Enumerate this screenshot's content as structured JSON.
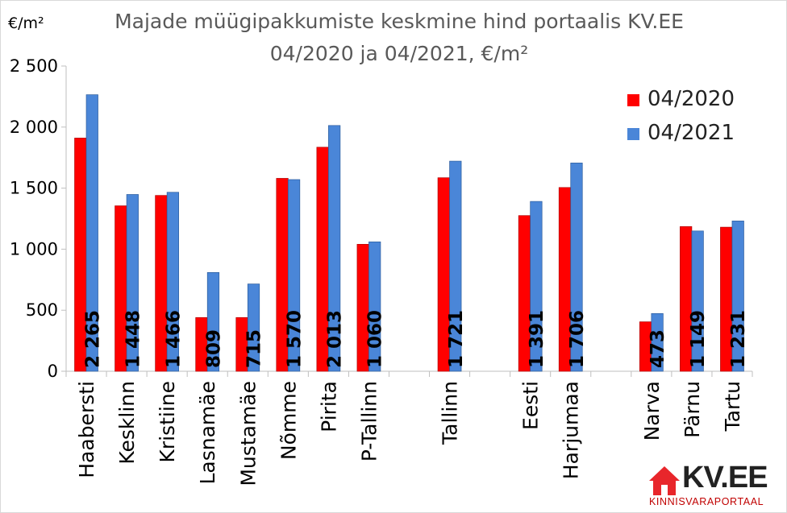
{
  "chart_data": {
    "type": "bar",
    "title": "Majade müügipakkumiste keskmine hind portaalis KV.EE",
    "subtitle": "04/2020 ja 04/2021, €/m²",
    "ylabel": "€/m²",
    "ylim": [
      0,
      2500
    ],
    "yticks": [
      "0",
      "500",
      "1 000",
      "1 500",
      "2 000",
      "2 500"
    ],
    "grid": false,
    "legend_position": "top-right",
    "categories": [
      "Haabersti",
      "Kesklinn",
      "Kristiine",
      "Lasnamäe",
      "Mustamäe",
      "Nõmme",
      "Pirita",
      "P-Tallinn",
      "",
      "Tallinn",
      "",
      "Eesti",
      "Harjumaa",
      "",
      "Narva",
      "Pärnu",
      "Tartu"
    ],
    "series": [
      {
        "name": "04/2020",
        "color": "#ff0000",
        "values": [
          1910,
          1355,
          1440,
          440,
          440,
          1580,
          1835,
          1040,
          null,
          1585,
          null,
          1275,
          1505,
          null,
          405,
          1185,
          1180
        ]
      },
      {
        "name": "04/2021",
        "color": "#4a86d8",
        "values": [
          2265,
          1448,
          1466,
          809,
          715,
          1570,
          2013,
          1060,
          null,
          1721,
          null,
          1391,
          1706,
          null,
          473,
          1149,
          1231
        ],
        "data_labels": [
          "2 265",
          "1 448",
          "1 466",
          "809",
          "715",
          "1 570",
          "2 013",
          "1 060",
          "",
          "1 721",
          "",
          "1 391",
          "1 706",
          "",
          "473",
          "1 149",
          "1 231"
        ]
      }
    ]
  },
  "logo": {
    "text": "KV.EE",
    "subtext": "KINNISVARAPORTAAL"
  }
}
